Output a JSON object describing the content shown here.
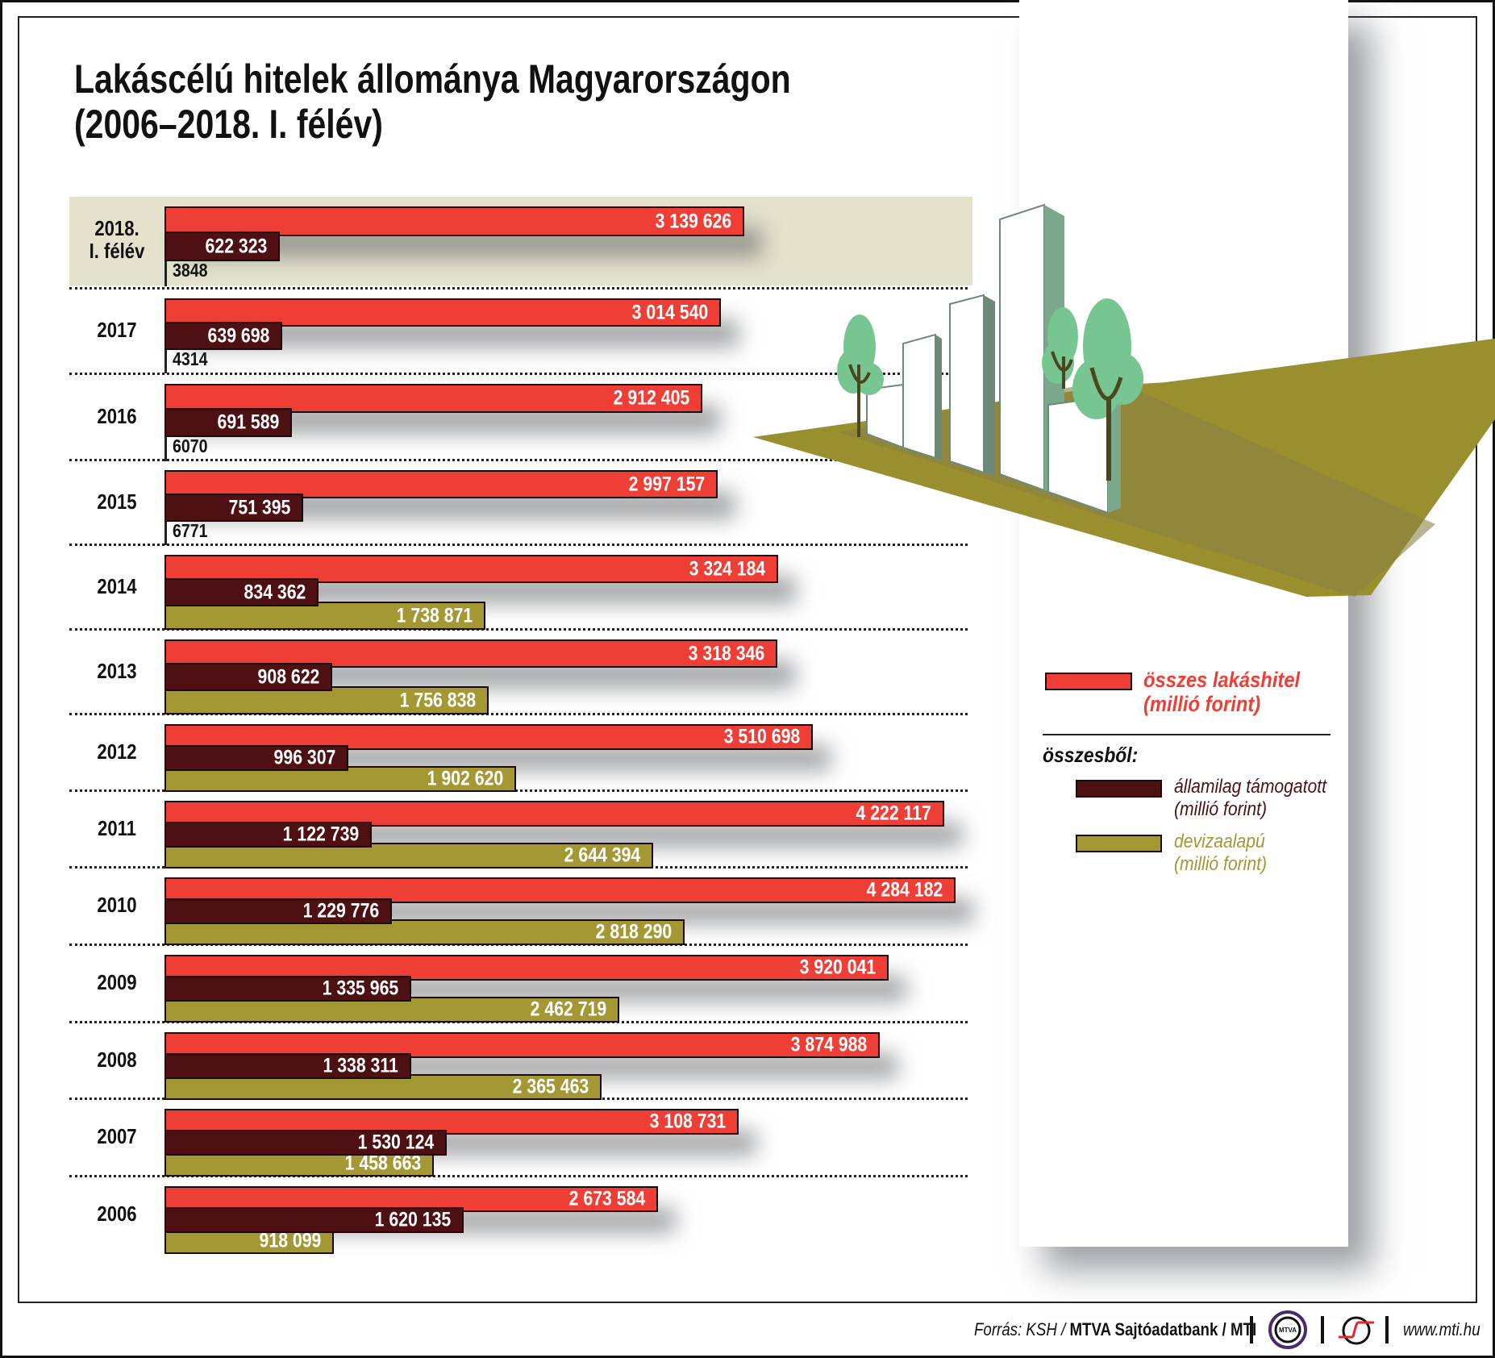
{
  "title": {
    "line1": "Lakáscélú hitelek állománya Magyarországon",
    "line2": "(2006–2018. I. félév)"
  },
  "colors": {
    "total": "#ef3e36",
    "state_supported": "#4e1012",
    "foreign_currency": "#a39834",
    "highlight": "#e4e2cc"
  },
  "legend": {
    "total_line1": "összes lakáshitel",
    "total_line2": "(millió forint)",
    "of_which": "összesből:",
    "state_line1": "államilag támogatott",
    "state_line2": "(millió forint)",
    "fx_line1": "devizaalapú",
    "fx_line2": "(millió forint)"
  },
  "footer": {
    "source_prefix": "Forrás: KSH / ",
    "source_bold": "MTVA Sajtóadatbank / MTI",
    "mtva_logo": "MTVA",
    "url": "www.mti.hu"
  },
  "rows": [
    {
      "label1": "2018.",
      "label2": "I. félév",
      "total": "3 139 626",
      "state": "622 323",
      "fx": "3848"
    },
    {
      "label1": "2017",
      "label2": "",
      "total": "3 014 540",
      "state": "639 698",
      "fx": "4314"
    },
    {
      "label1": "2016",
      "label2": "",
      "total": "2 912 405",
      "state": "691 589",
      "fx": "6070"
    },
    {
      "label1": "2015",
      "label2": "",
      "total": "2 997 157",
      "state": "751 395",
      "fx": "6771"
    },
    {
      "label1": "2014",
      "label2": "",
      "total": "3 324 184",
      "state": "834 362",
      "fx": "1 738 871"
    },
    {
      "label1": "2013",
      "label2": "",
      "total": "3 318 346",
      "state": "908 622",
      "fx": "1 756 838"
    },
    {
      "label1": "2012",
      "label2": "",
      "total": "3 510 698",
      "state": "996 307",
      "fx": "1 902 620"
    },
    {
      "label1": "2011",
      "label2": "",
      "total": "4 222 117",
      "state": "1 122 739",
      "fx": "2 644 394"
    },
    {
      "label1": "2010",
      "label2": "",
      "total": "4 284 182",
      "state": "1 229 776",
      "fx": "2 818 290"
    },
    {
      "label1": "2009",
      "label2": "",
      "total": "3 920 041",
      "state": "1 335 965",
      "fx": "2 462 719"
    },
    {
      "label1": "2008",
      "label2": "",
      "total": "3 874 988",
      "state": "1 338 311",
      "fx": "2 365 463"
    },
    {
      "label1": "2007",
      "label2": "",
      "total": "3 108 731",
      "state": "1 530 124",
      "fx": "1 458 663"
    },
    {
      "label1": "2006",
      "label2": "",
      "total": "2 673 584",
      "state": "1 620 135",
      "fx": "918 099"
    }
  ],
  "chart_data": {
    "type": "bar",
    "orientation": "horizontal",
    "title": "Lakáscélú hitelek állománya Magyarországon (2006–2018. I. félév)",
    "xlabel": "",
    "ylabel": "",
    "unit": "millió forint",
    "categories": [
      "2018. I. félév",
      "2017",
      "2016",
      "2015",
      "2014",
      "2013",
      "2012",
      "2011",
      "2010",
      "2009",
      "2008",
      "2007",
      "2006"
    ],
    "series": [
      {
        "name": "összes lakáshitel (millió forint)",
        "color": "#ef3e36",
        "values": [
          3139626,
          3014540,
          2912405,
          2997157,
          3324184,
          3318346,
          3510698,
          4222117,
          4284182,
          3920041,
          3874988,
          3108731,
          2673584
        ]
      },
      {
        "name": "államilag támogatott (millió forint)",
        "color": "#4e1012",
        "values": [
          622323,
          639698,
          691589,
          751395,
          834362,
          908622,
          996307,
          1122739,
          1229776,
          1335965,
          1338311,
          1530124,
          1620135
        ]
      },
      {
        "name": "devizaalapú (millió forint)",
        "color": "#a39834",
        "values": [
          3848,
          4314,
          6070,
          6771,
          1738871,
          1756838,
          1902620,
          2644394,
          2818290,
          2462719,
          2365463,
          1458663,
          918099
        ]
      }
    ],
    "legend_group_label": "összesből:",
    "highlighted_category": "2018. I. félév",
    "grid": false,
    "legend_position": "right",
    "source": "Forrás: KSH / MTVA Sajtóadatbank / MTI"
  }
}
